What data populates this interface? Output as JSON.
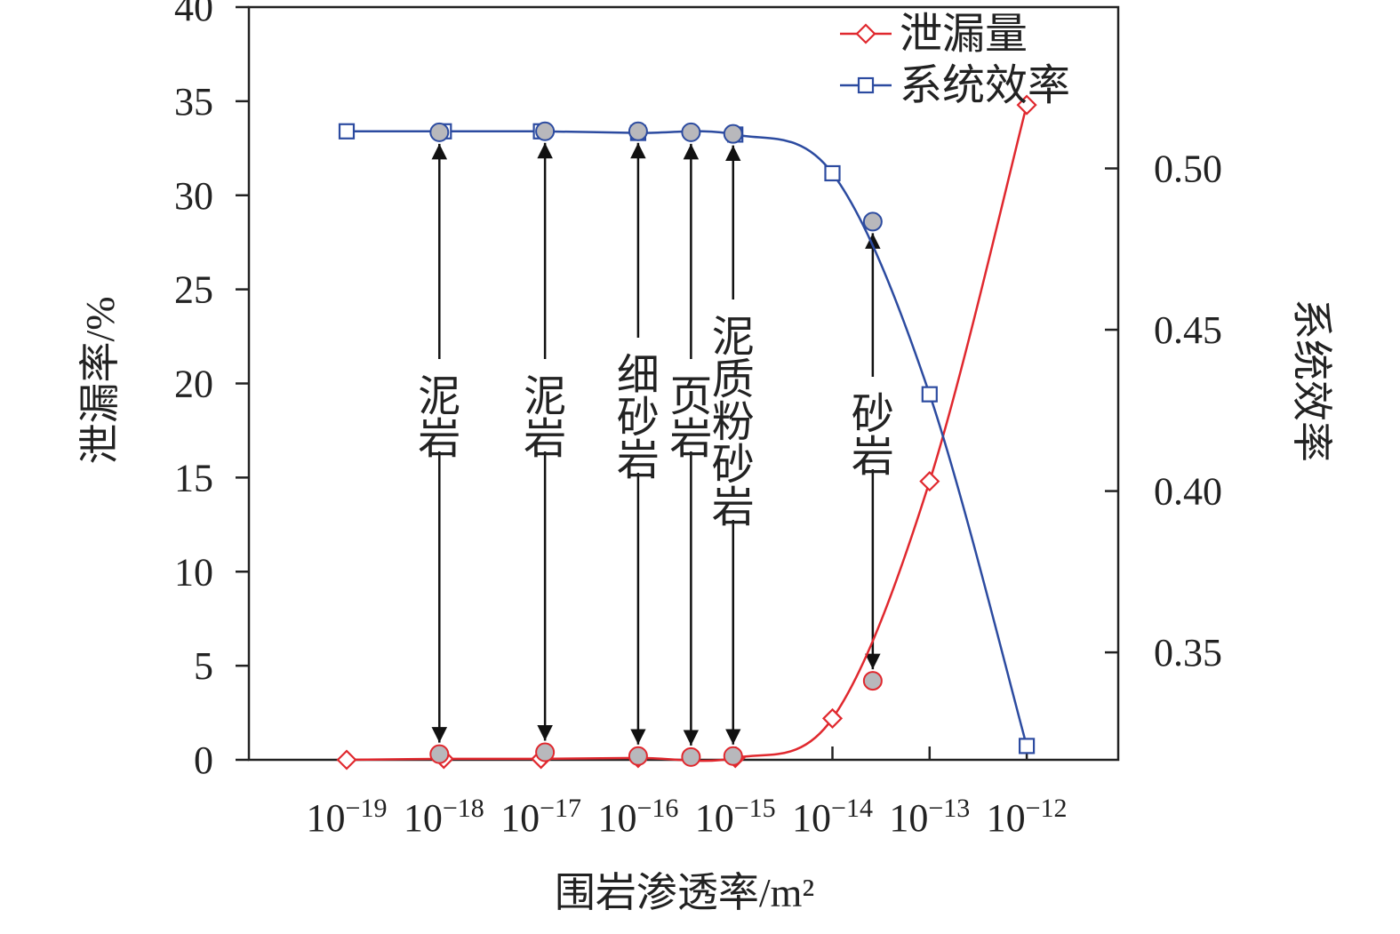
{
  "chart_data": {
    "type": "line",
    "xlabel": "围岩渗透率/m²",
    "ylabel_left": "泄漏率/%",
    "ylabel_right": "系统效率",
    "x_scale": "log",
    "x_ticks": [
      {
        "base": "10",
        "exp": "−19",
        "value": 1e-19
      },
      {
        "base": "10",
        "exp": "−18",
        "value": 1e-18
      },
      {
        "base": "10",
        "exp": "−17",
        "value": 1e-17
      },
      {
        "base": "10",
        "exp": "−16",
        "value": 1e-16
      },
      {
        "base": "10",
        "exp": "−15",
        "value": 1e-15
      },
      {
        "base": "10",
        "exp": "−14",
        "value": 1e-14
      },
      {
        "base": "10",
        "exp": "−13",
        "value": 1e-13
      },
      {
        "base": "10",
        "exp": "−12",
        "value": 1e-12
      }
    ],
    "ylim_left": [
      0,
      40
    ],
    "yticks_left": [
      "0",
      "5",
      "10",
      "15",
      "20",
      "25",
      "30",
      "35",
      "40"
    ],
    "ylim_right": [
      0.3167,
      0.55
    ],
    "yticks_right": [
      "0.35",
      "0.40",
      "0.45",
      "0.50"
    ],
    "grid": false,
    "legend_position": "top-right",
    "series": [
      {
        "name": "泄漏量",
        "axis": "left",
        "color": "#e0282e",
        "marker": "diamond",
        "x": [
          1e-19,
          1e-18,
          1e-17,
          1e-16,
          1e-15,
          1e-14,
          1e-13,
          1e-12
        ],
        "y": [
          0.0,
          0.05,
          0.05,
          0.1,
          0.1,
          2.2,
          14.8,
          34.8
        ]
      },
      {
        "name": "系统效率",
        "axis": "right",
        "color": "#2c4ba0",
        "marker": "square",
        "x": [
          1e-19,
          1e-18,
          1e-17,
          1e-16,
          1e-15,
          1e-14,
          1e-13,
          1e-12
        ],
        "y": [
          0.5115,
          0.5115,
          0.5115,
          0.511,
          0.5105,
          0.4985,
          0.43,
          0.321
        ]
      }
    ],
    "rock_points": [
      {
        "label": "泥岩",
        "x": 9e-19,
        "leakage": 0.3,
        "efficiency": 0.5112
      },
      {
        "label": "泥岩",
        "x": 1.1e-17,
        "leakage": 0.4,
        "efficiency": 0.5115
      },
      {
        "label": "细砂岩",
        "x": 1e-16,
        "leakage": 0.2,
        "efficiency": 0.5115
      },
      {
        "label": "页岩",
        "x": 3.5e-16,
        "leakage": 0.15,
        "efficiency": 0.5112
      },
      {
        "label": "泥质粉砂岩",
        "x": 9.5e-16,
        "leakage": 0.2,
        "efficiency": 0.5107
      },
      {
        "label": "砂岩",
        "x": 2.6e-14,
        "leakage": 4.2,
        "efficiency": 0.4835
      }
    ]
  }
}
